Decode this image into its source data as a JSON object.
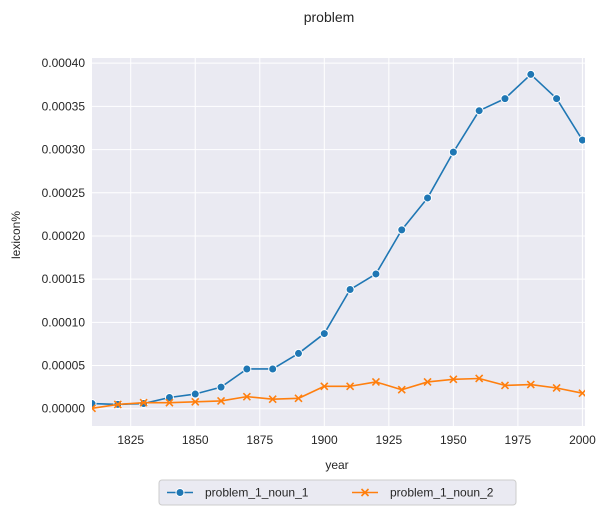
{
  "chart_data": {
    "type": "line",
    "title": "problem",
    "xlabel": "year",
    "ylabel": "lexicon%",
    "xlim": [
      1810,
      2001
    ],
    "ylim": [
      -2e-05,
      0.000406
    ],
    "xticks": [
      1825,
      1850,
      1875,
      1900,
      1925,
      1950,
      1975,
      2000
    ],
    "yticks": [
      0.0,
      5e-05,
      0.0001,
      0.00015,
      0.0002,
      0.00025,
      0.0003,
      0.00035,
      0.0004
    ],
    "ytick_labels": [
      "0.00000",
      "0.00005",
      "0.00010",
      "0.00015",
      "0.00020",
      "0.00025",
      "0.00030",
      "0.00035",
      "0.00040"
    ],
    "grid": true,
    "legend_position": "below",
    "x": [
      1810,
      1820,
      1830,
      1840,
      1850,
      1860,
      1870,
      1880,
      1890,
      1900,
      1910,
      1920,
      1930,
      1940,
      1950,
      1960,
      1970,
      1980,
      1990,
      2000
    ],
    "series": [
      {
        "name": "problem_1_noun_1",
        "color": "#1f77b4",
        "marker": "circle",
        "values": [
          6e-06,
          5e-06,
          6e-06,
          1.3e-05,
          1.7e-05,
          2.5e-05,
          4.6e-05,
          4.6e-05,
          6.4e-05,
          8.7e-05,
          0.000138,
          0.000156,
          0.000207,
          0.000244,
          0.000297,
          0.000345,
          0.000359,
          0.000387,
          0.000359,
          0.000311
        ]
      },
      {
        "name": "problem_1_noun_2",
        "color": "#ff7f0e",
        "marker": "x",
        "values": [
          5e-07,
          5e-06,
          7e-06,
          7e-06,
          8e-06,
          9e-06,
          1.4e-05,
          1.1e-05,
          1.2e-05,
          2.6e-05,
          2.6e-05,
          3.1e-05,
          2.2e-05,
          3.1e-05,
          3.4e-05,
          3.5e-05,
          2.7e-05,
          2.8e-05,
          2.4e-05,
          1.8e-05
        ]
      }
    ]
  }
}
